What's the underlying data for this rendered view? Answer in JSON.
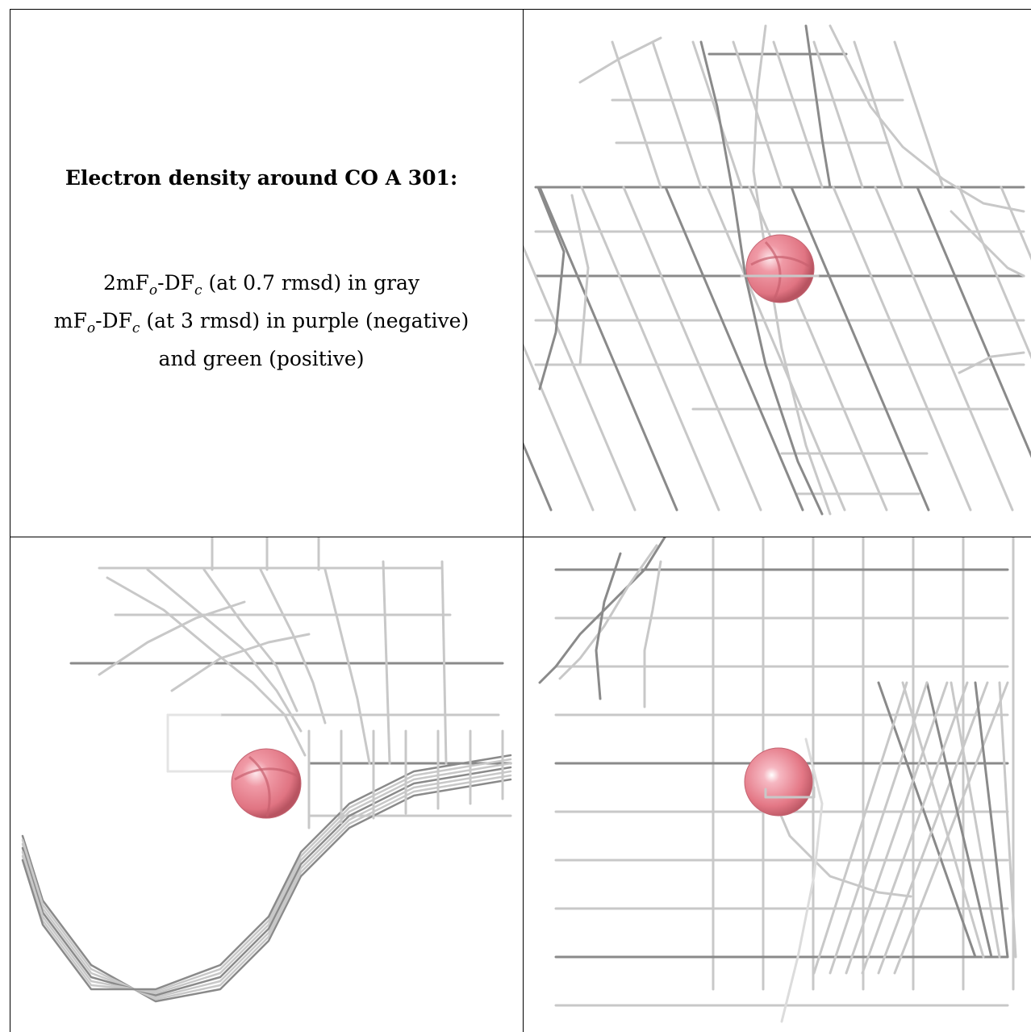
{
  "caption": {
    "title": "Electron density around CO A 301:",
    "line1": "2mFₒ-DF꜀ (at 0.7 rmsd) in gray",
    "line2": "mFₒ-DF꜀ (at 3 rmsd) in purple (negative)",
    "line3": "and green (positive)"
  },
  "colors": {
    "mesh_light": "#c8c8c8",
    "mesh_dark": "#8a8a8a",
    "atom": "#e8808e",
    "atom_highlight": "#fbe3e7",
    "atom_shadow": "#b8505e",
    "border": "#000000"
  },
  "panels": [
    "caption-panel",
    "view-top-right",
    "view-bottom-left",
    "view-bottom-right"
  ]
}
